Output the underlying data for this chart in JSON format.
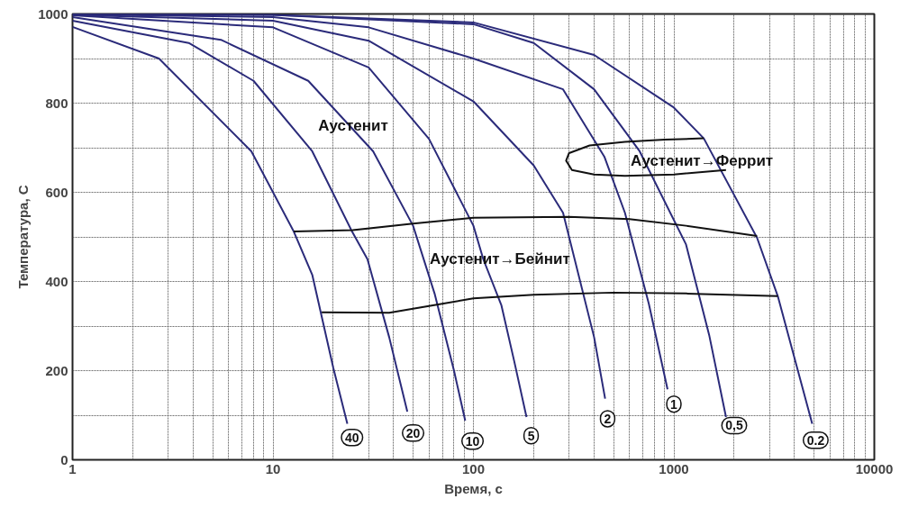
{
  "chart_data": {
    "type": "line",
    "xlabel": "Время, с",
    "ylabel": "Температура, С",
    "log": "x",
    "grid": true,
    "line_style": "solid",
    "marker": "none",
    "xlim": [
      1,
      10000
    ],
    "ylim": [
      0,
      1000
    ],
    "xticks": [
      1,
      {
        "value": 2,
        "label": null
      },
      {
        "value": 3,
        "label": null
      },
      {
        "value": 4,
        "label": null
      },
      {
        "value": 5,
        "label": null
      },
      {
        "value": 6,
        "label": null
      },
      {
        "value": 7,
        "label": null
      },
      {
        "value": 8,
        "label": null
      },
      {
        "value": 9,
        "label": null
      },
      10,
      {
        "value": 20,
        "label": null
      },
      {
        "value": 30,
        "label": null
      },
      {
        "value": 40,
        "label": null
      },
      {
        "value": 50,
        "label": null
      },
      {
        "value": 60,
        "label": null
      },
      {
        "value": 70,
        "label": null
      },
      {
        "value": 80,
        "label": null
      },
      {
        "value": 90,
        "label": null
      },
      100,
      {
        "value": 200,
        "label": null
      },
      {
        "value": 300,
        "label": null
      },
      {
        "value": 400,
        "label": null
      },
      {
        "value": 500,
        "label": null
      },
      {
        "value": 600,
        "label": null
      },
      {
        "value": 700,
        "label": null
      },
      {
        "value": 800,
        "label": null
      },
      {
        "value": 900,
        "label": null
      },
      1000,
      {
        "value": 2000,
        "label": null
      },
      {
        "value": 3000,
        "label": null
      },
      {
        "value": 4000,
        "label": null
      },
      {
        "value": 5000,
        "label": null
      },
      {
        "value": 6000,
        "label": null
      },
      {
        "value": 7000,
        "label": null
      },
      {
        "value": 8000,
        "label": null
      },
      {
        "value": 9000,
        "label": null
      },
      10000
    ],
    "yticks": [
      0,
      {
        "value": 100,
        "label": null
      },
      200,
      {
        "value": 300,
        "label": null
      },
      400,
      {
        "value": 500,
        "label": null
      },
      600,
      {
        "value": 700,
        "label": null
      },
      800,
      {
        "value": 900,
        "label": null
      },
      1000
    ],
    "series": [
      {
        "color": "#2b2b7a",
        "x": [
          1,
          2.7,
          7.8,
          12.7,
          15.7,
          20,
          23.5
        ],
        "values": [
          971,
          900,
          692,
          512,
          415,
          206,
          81
        ]
      },
      {
        "color": "#2b2b7a",
        "x": [
          1,
          3.8,
          8,
          15.7,
          24.8,
          29.6,
          38,
          46.8
        ],
        "values": [
          985,
          935,
          850,
          692,
          512,
          450,
          275,
          108
        ]
      },
      {
        "color": "#2b2b7a",
        "x": [
          1,
          5.5,
          15,
          31.6,
          50,
          64,
          80,
          91
        ],
        "values": [
          993,
          942,
          850,
          692,
          525,
          373,
          200,
          88
        ]
      },
      {
        "color": "#2b2b7a",
        "x": [
          1,
          10,
          30,
          60,
          100,
          112,
          138,
          160,
          184
        ],
        "values": [
          997,
          970,
          880,
          720,
          525,
          450,
          346,
          220,
          96
        ]
      },
      {
        "color": "#2b2b7a",
        "x": [
          1,
          10,
          30,
          100,
          200,
          280,
          400,
          454
        ],
        "values": [
          998,
          985,
          940,
          804,
          660,
          554,
          275,
          137
        ]
      },
      {
        "color": "#2b2b7a",
        "x": [
          1,
          10,
          30,
          100,
          280,
          450,
          570,
          750,
          930
        ],
        "values": [
          999,
          993,
          970,
          900,
          831,
          680,
          554,
          350,
          158
        ]
      },
      {
        "color": "#2b2b7a",
        "x": [
          1,
          10,
          100,
          200,
          400,
          675,
          1150,
          1500,
          1820
        ],
        "values": [
          1000,
          998,
          977,
          935,
          831,
          692,
          483,
          280,
          96
        ]
      },
      {
        "color": "#2b2b7a",
        "x": [
          1,
          10,
          100,
          400,
          1000,
          1410,
          2600,
          3300,
          4900
        ],
        "values": [
          1000,
          998,
          981,
          908,
          790,
          721,
          498,
          367,
          81
        ]
      },
      {
        "color": "#111111",
        "x": [
          12.7,
          25,
          50,
          100,
          300,
          600,
          1150,
          2600
        ],
        "values": [
          512,
          515,
          530,
          543,
          545,
          540,
          525,
          502
        ]
      },
      {
        "color": "#111111",
        "x": [
          17.5,
          38,
          60,
          100,
          200,
          500,
          1150,
          3300
        ],
        "values": [
          331,
          330,
          345,
          362,
          370,
          375,
          373,
          367
        ]
      },
      {
        "color": "#111111",
        "x": [
          1410,
          900,
          570,
          380,
          300,
          290,
          310,
          400,
          570,
          1000,
          1820
        ],
        "values": [
          721,
          718,
          713,
          705,
          688,
          671,
          650,
          640,
          637,
          640,
          650
        ]
      }
    ],
    "annotations": [
      "Аустенит",
      "Аустенит→Феррит",
      "Аустенит→Бейнит",
      {
        "text": "40",
        "x": 24.8,
        "y": 50
      },
      {
        "text": "20",
        "x": 50,
        "y": 60
      },
      {
        "text": "10",
        "x": 99,
        "y": 42
      },
      {
        "text": "5",
        "x": 194,
        "y": 54
      },
      {
        "text": "2",
        "x": 467,
        "y": 92
      },
      {
        "text": "1",
        "x": 1000,
        "y": 125
      },
      {
        "text": "0,5",
        "x": 2000,
        "y": 77
      },
      {
        "text": "0.2",
        "x": 5100,
        "y": 44
      }
    ]
  }
}
